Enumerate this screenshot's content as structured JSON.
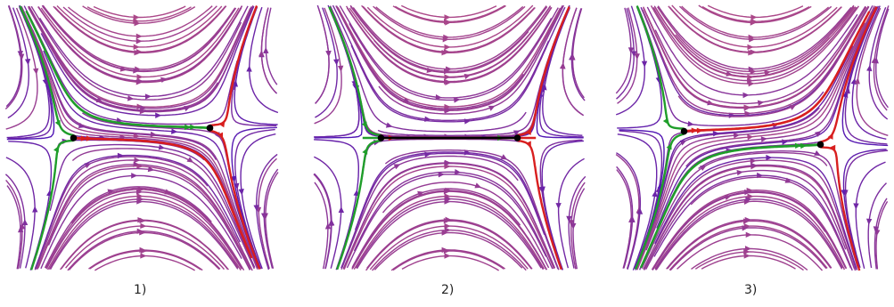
{
  "panels": [
    {
      "label": "1)",
      "fixed_points": [
        [
          -1,
          0
        ],
        [
          1,
          0.15
        ]
      ],
      "separatrices": [
        {
          "kind": "stable",
          "color": "green"
        },
        {
          "kind": "unstable",
          "color": "red"
        }
      ]
    },
    {
      "label": "2)",
      "fixed_points": [
        [
          -1,
          0
        ],
        [
          1,
          0
        ]
      ],
      "separatrices": [
        {
          "kind": "stable",
          "color": "green"
        },
        {
          "kind": "unstable",
          "color": "red"
        },
        {
          "kind": "heteroclinic",
          "color": "black"
        }
      ]
    },
    {
      "label": "3)",
      "fixed_points": [
        [
          -1,
          0.1
        ],
        [
          1,
          -0.1
        ]
      ],
      "separatrices": [
        {
          "kind": "stable",
          "color": "green"
        },
        {
          "kind": "unstable",
          "color": "red"
        }
      ]
    }
  ],
  "colors": {
    "stable": "#1f9e2a",
    "unstable": "#d81f1f",
    "connection": "#000000",
    "fixed_point": "#000000",
    "stream_slow": "#4a12b8",
    "stream_mid": "#b04a86",
    "stream_fast": "#f08a1a"
  }
}
